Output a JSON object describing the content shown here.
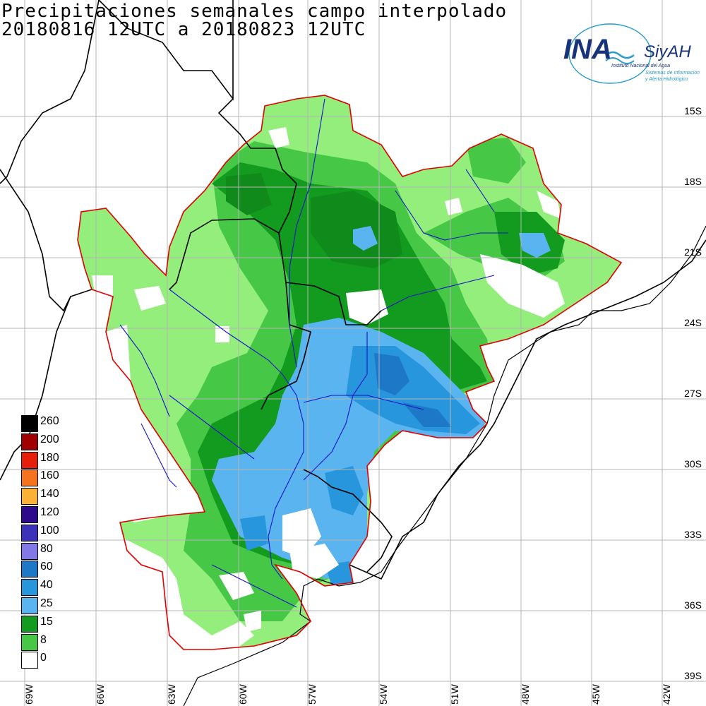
{
  "title_line1": "Precipitaciones semanales campo interpolado",
  "title_line2": "20180816 12UTC a 20180823 12UTC",
  "logo": {
    "main": "INA",
    "brand": "SiyAH",
    "subtitle": "Instituto Nacional del Agua",
    "tagline1": "Sistemas de Información",
    "tagline2": "y Alerta Hidrológico",
    "icon": "wave-icon"
  },
  "legend": [
    {
      "label": "260",
      "color": "#000000"
    },
    {
      "label": "200",
      "color": "#a00000"
    },
    {
      "label": "180",
      "color": "#e61e0a"
    },
    {
      "label": "160",
      "color": "#f5731e"
    },
    {
      "label": "140",
      "color": "#f9b137"
    },
    {
      "label": "120",
      "color": "#2d0a8c"
    },
    {
      "label": "100",
      "color": "#3c32b9"
    },
    {
      "label": "80",
      "color": "#8278e6"
    },
    {
      "label": "60",
      "color": "#1e78c8"
    },
    {
      "label": "40",
      "color": "#2896dc"
    },
    {
      "label": "25",
      "color": "#5ab4f0"
    },
    {
      "label": "15",
      "color": "#129b1e"
    },
    {
      "label": "8",
      "color": "#46c846"
    },
    {
      "label": "0",
      "color": "#ffffff"
    }
  ],
  "colors": {
    "grid": "#b4b4b4",
    "basin_border": "#e00000",
    "rivers": "#1414c8",
    "borders": "#000000"
  },
  "lat_labels": [
    "15S",
    "18S",
    "21S",
    "24S",
    "27S",
    "30S",
    "33S",
    "36S",
    "39S"
  ],
  "lon_labels": [
    "69W",
    "66W",
    "63W",
    "60W",
    "57W",
    "54W",
    "51W",
    "48W",
    "45W",
    "42W"
  ]
}
